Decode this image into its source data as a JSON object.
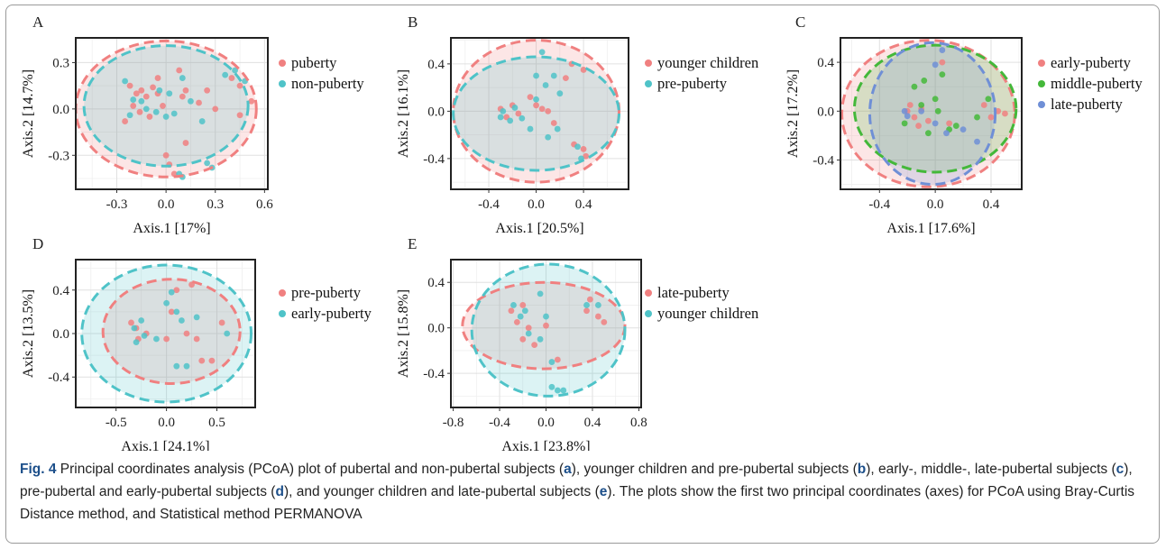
{
  "chart_data": [
    {
      "type": "scatter",
      "panel": "A",
      "xlabel": "Axis.1   [17%]",
      "ylabel": "Axis.2   [14.7%]",
      "xlim": [
        -0.55,
        0.62
      ],
      "ylim": [
        -0.52,
        0.46
      ],
      "xticks": [
        -0.3,
        0.0,
        0.3,
        0.6
      ],
      "xtick_labels": [
        "-0.3",
        "0.0",
        "0.3",
        "0.6"
      ],
      "yticks": [
        -0.3,
        0.0,
        0.3
      ],
      "ytick_labels": [
        "-0.3",
        "0.0",
        "0.3"
      ],
      "series": [
        {
          "name": "puberty",
          "color": "#f08080",
          "ellipse": {
            "cx": 0.0,
            "cy": 0.0,
            "rx": 0.55,
            "ry": 0.44
          },
          "points": [
            [
              -0.22,
              0.15
            ],
            [
              -0.18,
              0.1
            ],
            [
              -0.15,
              0.12
            ],
            [
              -0.12,
              0.08
            ],
            [
              -0.08,
              0.14
            ],
            [
              -0.05,
              0.1
            ],
            [
              -0.2,
              0.02
            ],
            [
              -0.16,
              -0.02
            ],
            [
              -0.1,
              -0.05
            ],
            [
              -0.02,
              0.02
            ],
            [
              0.12,
              0.12
            ],
            [
              0.08,
              0.25
            ],
            [
              0.1,
              0.08
            ],
            [
              0.2,
              0.04
            ],
            [
              0.25,
              0.12
            ],
            [
              0.3,
              0.0
            ],
            [
              0.4,
              0.2
            ],
            [
              0.45,
              0.15
            ],
            [
              0.52,
              0.05
            ],
            [
              0.45,
              -0.04
            ],
            [
              0.0,
              -0.3
            ],
            [
              0.02,
              -0.36
            ],
            [
              0.05,
              -0.42
            ],
            [
              0.12,
              -0.22
            ],
            [
              -0.05,
              0.2
            ],
            [
              -0.25,
              -0.08
            ]
          ]
        },
        {
          "name": "non-puberty",
          "color": "#4fc3c8",
          "ellipse": {
            "cx": 0.0,
            "cy": 0.02,
            "rx": 0.5,
            "ry": 0.39
          },
          "points": [
            [
              -0.2,
              0.06
            ],
            [
              -0.15,
              0.05
            ],
            [
              -0.22,
              -0.04
            ],
            [
              -0.12,
              0.0
            ],
            [
              -0.06,
              -0.02
            ],
            [
              0.0,
              -0.05
            ],
            [
              0.05,
              -0.03
            ],
            [
              0.02,
              0.1
            ],
            [
              -0.25,
              0.18
            ],
            [
              0.1,
              0.2
            ],
            [
              0.15,
              0.05
            ],
            [
              0.22,
              -0.08
            ],
            [
              0.36,
              0.22
            ],
            [
              0.42,
              0.25
            ],
            [
              0.48,
              0.18
            ],
            [
              0.08,
              -0.42
            ],
            [
              0.1,
              -0.44
            ],
            [
              0.25,
              -0.35
            ],
            [
              0.28,
              -0.38
            ],
            [
              -0.04,
              0.12
            ]
          ]
        }
      ]
    },
    {
      "type": "scatter",
      "panel": "B",
      "xlabel": "Axis.1   [20.5%]",
      "ylabel": "Axis.2   [16.1%]",
      "xlim": [
        -0.72,
        0.78
      ],
      "ylim": [
        -0.66,
        0.62
      ],
      "xticks": [
        -0.4,
        0.0,
        0.4
      ],
      "xtick_labels": [
        "-0.4",
        "0.0",
        "0.4"
      ],
      "yticks": [
        -0.4,
        0.0,
        0.4
      ],
      "ytick_labels": [
        "-0.4",
        "0.0",
        "0.4"
      ],
      "series": [
        {
          "name": "younger children",
          "color": "#f08080",
          "ellipse": {
            "cx": 0.0,
            "cy": 0.0,
            "rx": 0.7,
            "ry": 0.6
          },
          "points": [
            [
              -0.3,
              0.02
            ],
            [
              -0.25,
              -0.05
            ],
            [
              -0.2,
              0.05
            ],
            [
              -0.15,
              -0.02
            ],
            [
              0.0,
              0.05
            ],
            [
              0.05,
              0.02
            ],
            [
              0.1,
              0.0
            ],
            [
              0.3,
              0.4
            ],
            [
              0.4,
              0.35
            ],
            [
              0.25,
              0.28
            ],
            [
              0.32,
              -0.28
            ],
            [
              0.4,
              -0.32
            ],
            [
              0.42,
              -0.38
            ],
            [
              -0.05,
              0.12
            ],
            [
              0.15,
              -0.1
            ]
          ]
        },
        {
          "name": "pre-puberty",
          "color": "#4fc3c8",
          "ellipse": {
            "cx": 0.0,
            "cy": -0.02,
            "rx": 0.7,
            "ry": 0.48
          },
          "points": [
            [
              -0.3,
              -0.05
            ],
            [
              -0.28,
              0.0
            ],
            [
              -0.22,
              -0.08
            ],
            [
              -0.18,
              0.03
            ],
            [
              -0.12,
              -0.06
            ],
            [
              0.0,
              0.3
            ],
            [
              0.05,
              0.5
            ],
            [
              0.08,
              0.22
            ],
            [
              0.15,
              0.3
            ],
            [
              0.0,
              0.1
            ],
            [
              0.18,
              -0.15
            ],
            [
              0.35,
              -0.3
            ],
            [
              0.38,
              -0.4
            ],
            [
              0.1,
              -0.22
            ],
            [
              0.2,
              0.15
            ],
            [
              -0.05,
              -0.15
            ]
          ]
        }
      ]
    },
    {
      "type": "scatter",
      "panel": "C",
      "xlabel": "Axis.1   [17.6%]",
      "ylabel": "Axis.2   [17.2%]",
      "xlim": [
        -0.68,
        0.62
      ],
      "ylim": [
        -0.64,
        0.6
      ],
      "xticks": [
        -0.4,
        0.0,
        0.4
      ],
      "xtick_labels": [
        "-0.4",
        "0.0",
        "0.4"
      ],
      "yticks": [
        -0.4,
        0.0,
        0.4
      ],
      "ytick_labels": [
        "-0.4",
        "0.0",
        "0.4"
      ],
      "series": [
        {
          "name": "early-puberty",
          "color": "#f08080",
          "ellipse": {
            "cx": -0.05,
            "cy": -0.02,
            "rx": 0.62,
            "ry": 0.6
          },
          "points": [
            [
              -0.2,
              0.0
            ],
            [
              -0.15,
              -0.05
            ],
            [
              -0.1,
              0.02
            ],
            [
              -0.18,
              0.05
            ],
            [
              -0.05,
              -0.08
            ],
            [
              0.1,
              -0.1
            ],
            [
              0.35,
              0.05
            ],
            [
              0.4,
              -0.05
            ],
            [
              0.45,
              0.0
            ],
            [
              0.5,
              -0.02
            ],
            [
              0.05,
              0.4
            ],
            [
              -0.12,
              -0.12
            ]
          ]
        },
        {
          "name": "middle-puberty",
          "color": "#44b83a",
          "ellipse": {
            "cx": 0.0,
            "cy": 0.02,
            "rx": 0.58,
            "ry": 0.52
          },
          "points": [
            [
              -0.15,
              0.2
            ],
            [
              -0.08,
              0.25
            ],
            [
              0.0,
              0.1
            ],
            [
              0.02,
              0.0
            ],
            [
              -0.1,
              0.05
            ],
            [
              0.1,
              -0.15
            ],
            [
              0.15,
              -0.12
            ],
            [
              -0.22,
              -0.1
            ],
            [
              0.05,
              0.3
            ],
            [
              0.3,
              -0.05
            ],
            [
              0.38,
              0.1
            ],
            [
              -0.05,
              -0.18
            ]
          ]
        },
        {
          "name": "late-puberty",
          "color": "#6f8fd6",
          "ellipse": {
            "cx": -0.02,
            "cy": -0.02,
            "rx": 0.45,
            "ry": 0.58
          },
          "points": [
            [
              -0.22,
              0.0
            ],
            [
              -0.2,
              -0.04
            ],
            [
              -0.1,
              0.0
            ],
            [
              0.0,
              0.38
            ],
            [
              0.05,
              0.5
            ],
            [
              0.08,
              -0.18
            ],
            [
              0.2,
              -0.15
            ],
            [
              0.0,
              -0.1
            ],
            [
              0.3,
              -0.25
            ]
          ]
        }
      ]
    },
    {
      "type": "scatter",
      "panel": "D",
      "xlabel": "Axis.1   [24.1%]",
      "ylabel": "Axis.2   [13.5%]",
      "xlim": [
        -0.9,
        0.88
      ],
      "ylim": [
        -0.68,
        0.68
      ],
      "xticks": [
        -0.5,
        0.0,
        0.5
      ],
      "xtick_labels": [
        "-0.5",
        "0.0",
        "0.5"
      ],
      "yticks": [
        -0.4,
        0.0,
        0.4
      ],
      "ytick_labels": [
        "-0.4",
        "0.0",
        "0.4"
      ],
      "series": [
        {
          "name": "pre-puberty",
          "color": "#f08080",
          "ellipse": {
            "cx": 0.05,
            "cy": 0.02,
            "rx": 0.68,
            "ry": 0.48
          },
          "points": [
            [
              -0.35,
              0.1
            ],
            [
              -0.3,
              0.05
            ],
            [
              -0.28,
              -0.05
            ],
            [
              -0.2,
              0.0
            ],
            [
              0.1,
              0.4
            ],
            [
              0.25,
              0.45
            ],
            [
              0.2,
              0.0
            ],
            [
              0.3,
              -0.05
            ],
            [
              0.05,
              0.2
            ],
            [
              0.55,
              0.1
            ],
            [
              0.45,
              -0.25
            ],
            [
              0.35,
              -0.25
            ],
            [
              0.0,
              -0.05
            ]
          ]
        },
        {
          "name": "early-puberty",
          "color": "#4fc3c8",
          "ellipse": {
            "cx": 0.0,
            "cy": 0.0,
            "rx": 0.84,
            "ry": 0.63
          },
          "points": [
            [
              -0.32,
              0.05
            ],
            [
              -0.3,
              -0.08
            ],
            [
              -0.25,
              0.12
            ],
            [
              -0.22,
              -0.02
            ],
            [
              0.05,
              0.38
            ],
            [
              0.0,
              0.28
            ],
            [
              0.1,
              0.2
            ],
            [
              0.15,
              0.12
            ],
            [
              0.1,
              -0.3
            ],
            [
              0.2,
              -0.3
            ],
            [
              0.6,
              0.0
            ],
            [
              -0.1,
              -0.05
            ],
            [
              0.3,
              0.15
            ]
          ]
        }
      ]
    },
    {
      "type": "scatter",
      "panel": "E",
      "xlabel": "Axis.1   [23.8%]",
      "ylabel": "Axis.2   [15.8%]",
      "xlim": [
        -0.82,
        0.82
      ],
      "ylim": [
        -0.7,
        0.6
      ],
      "xticks": [
        -0.8,
        -0.4,
        0.0,
        0.4,
        0.8
      ],
      "xtick_labels": [
        "-0.8",
        "-0.4",
        "0.0",
        "0.4",
        "0.8"
      ],
      "yticks": [
        -0.4,
        0.0,
        0.4
      ],
      "ytick_labels": [
        "-0.4",
        "0.0",
        "0.4"
      ],
      "series": [
        {
          "name": "late-puberty",
          "color": "#f08080",
          "ellipse": {
            "cx": -0.02,
            "cy": 0.02,
            "rx": 0.7,
            "ry": 0.38
          },
          "points": [
            [
              -0.3,
              0.15
            ],
            [
              -0.25,
              0.05
            ],
            [
              -0.2,
              0.2
            ],
            [
              -0.15,
              0.0
            ],
            [
              -0.2,
              -0.1
            ],
            [
              -0.1,
              -0.15
            ],
            [
              0.1,
              -0.28
            ],
            [
              0.0,
              0.02
            ],
            [
              0.35,
              0.15
            ],
            [
              0.45,
              0.1
            ],
            [
              0.5,
              0.05
            ],
            [
              0.38,
              0.25
            ]
          ]
        },
        {
          "name": "younger children",
          "color": "#4fc3c8",
          "ellipse": {
            "cx": 0.02,
            "cy": -0.02,
            "rx": 0.66,
            "ry": 0.58
          },
          "points": [
            [
              -0.28,
              0.2
            ],
            [
              -0.22,
              0.1
            ],
            [
              -0.18,
              0.15
            ],
            [
              -0.15,
              -0.05
            ],
            [
              -0.05,
              -0.1
            ],
            [
              0.0,
              0.1
            ],
            [
              0.05,
              -0.3
            ],
            [
              0.1,
              -0.55
            ],
            [
              0.05,
              -0.52
            ],
            [
              0.15,
              -0.55
            ],
            [
              0.35,
              0.2
            ],
            [
              0.45,
              0.2
            ],
            [
              -0.05,
              0.3
            ]
          ]
        }
      ]
    }
  ],
  "caption": {
    "fig_label": "Fig. 4",
    "text_1": " Principal coordinates analysis (PCoA) plot of pubertal and non-pubertal subjects (",
    "ref_a": "a",
    "text_2": "), younger children and pre-pubertal subjects (",
    "ref_b": "b",
    "text_3": "), early-, middle-, late-pubertal subjects (",
    "ref_c": "c",
    "text_4": "), pre-pubertal and early-pubertal subjects (",
    "ref_d": "d",
    "text_5": "), and younger children and late-pubertal subjects (",
    "ref_e": "e",
    "text_6": "). The plots show the first two principal coordinates (axes) for PCoA using Bray-Curtis Distance method, and Statistical method PERMANOVA"
  }
}
